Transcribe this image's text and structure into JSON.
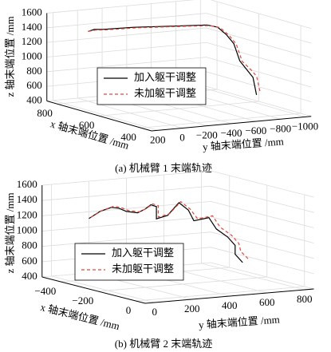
{
  "chart_data": [
    {
      "type": "line3d",
      "title": "(a) 机械臂 1 末端轨迹",
      "xlabel": "x 轴末端位置 /mm",
      "ylabel": "y 轴末端位置 /mm",
      "zlabel": "z 轴末端位置 /mm",
      "xlim": [
        350,
        850
      ],
      "ylim": [
        -1050,
        250
      ],
      "zlim": [
        400,
        1600
      ],
      "xticks": [
        400,
        600,
        800
      ],
      "yticks": [
        200,
        0,
        {
          "value": -200,
          "label": "−200"
        },
        {
          "value": -400,
          "label": "−400"
        },
        {
          "value": -600,
          "label": "−600"
        },
        {
          "value": -800,
          "label": "−800"
        },
        {
          "value": -1000,
          "label": "−1000"
        }
      ],
      "zticks": [
        400,
        600,
        800,
        1000,
        1200,
        1400,
        1600
      ],
      "grid": true,
      "series": [
        {
          "name": "加入躯干调整",
          "color": "#000000",
          "linestyle": "solid",
          "x": [
            700,
            700,
            700,
            700,
            700,
            700,
            680,
            650,
            620,
            600,
            580,
            560,
            540,
            520,
            500
          ],
          "y": [
            170,
            120,
            50,
            -200,
            -500,
            -800,
            -850,
            -870,
            -880,
            -870,
            -860,
            -880,
            -900,
            -880,
            -860
          ],
          "z": [
            1460,
            1480,
            1470,
            1460,
            1430,
            1400,
            1380,
            1300,
            1200,
            1100,
            1000,
            900,
            800,
            700,
            600
          ]
        },
        {
          "name": "未加躯干调整",
          "color": "#e8463a",
          "linestyle": "dashed",
          "x": [
            700,
            700,
            700,
            700,
            700,
            700,
            680,
            650,
            620,
            600,
            580,
            560,
            540,
            520,
            500
          ],
          "y": [
            170,
            110,
            30,
            -220,
            -520,
            -820,
            -870,
            -890,
            -900,
            -890,
            -880,
            -910,
            -930,
            -910,
            -890
          ],
          "z": [
            1460,
            1470,
            1460,
            1450,
            1420,
            1390,
            1370,
            1290,
            1190,
            1090,
            990,
            900,
            810,
            720,
            630
          ]
        }
      ]
    },
    {
      "type": "line3d",
      "title": "(b) 机械臂 2 末端轨迹",
      "xlabel": "x 轴末端位置 /mm",
      "ylabel": "y 轴末端位置 /mm",
      "zlabel": "z 轴末端位置 /mm",
      "xlim": [
        -500,
        50
      ],
      "ylim": [
        -50,
        850
      ],
      "zlim": [
        400,
        1600
      ],
      "xticks": [
        {
          "value": -400,
          "label": "−400"
        },
        {
          "value": -200,
          "label": "−200"
        },
        0
      ],
      "yticks": [
        0,
        200,
        400,
        600,
        800
      ],
      "zticks": [
        400,
        600,
        800,
        1000,
        1200,
        1400,
        1600
      ],
      "grid": true,
      "series": [
        {
          "name": "加入躯干调整",
          "color": "#000000",
          "linestyle": "solid",
          "x": [
            -300,
            -300,
            -300,
            -300,
            -300,
            -300,
            -300,
            -300,
            -300,
            -300,
            -280,
            -260,
            -240,
            -220,
            -200,
            -180,
            -160,
            -140,
            -120,
            -100
          ],
          "y": [
            0,
            60,
            120,
            160,
            200,
            260,
            300,
            330,
            360,
            360,
            400,
            440,
            470,
            480,
            540,
            560,
            600,
            620,
            600,
            620
          ],
          "z": [
            1280,
            1360,
            1400,
            1380,
            1330,
            1300,
            1340,
            1390,
            1360,
            1200,
            1250,
            1420,
            1330,
            1200,
            1240,
            1100,
            1000,
            900,
            800,
            700
          ]
        },
        {
          "name": "未加躯干调整",
          "color": "#e8463a",
          "linestyle": "dashed",
          "x": [
            -300,
            -300,
            -300,
            -300,
            -300,
            -300,
            -300,
            -300,
            -300,
            -300,
            -280,
            -260,
            -240,
            -220,
            -200,
            -180,
            -160,
            -140,
            -120,
            -100
          ],
          "y": [
            10,
            70,
            130,
            170,
            210,
            270,
            310,
            340,
            370,
            370,
            410,
            450,
            480,
            500,
            560,
            580,
            620,
            640,
            630,
            650
          ],
          "z": [
            1290,
            1370,
            1410,
            1390,
            1340,
            1310,
            1350,
            1400,
            1370,
            1220,
            1270,
            1430,
            1340,
            1220,
            1260,
            1120,
            1020,
            920,
            830,
            740
          ]
        }
      ]
    }
  ]
}
